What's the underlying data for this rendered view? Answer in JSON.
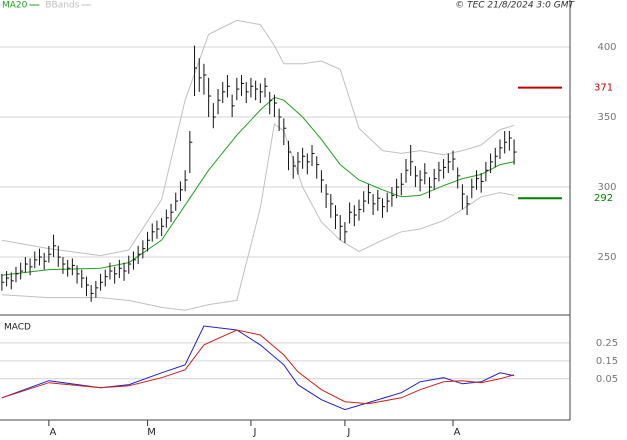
{
  "chart_data": [
    {
      "type": "ohlc",
      "source": "© TEC 21/8/2024 3:0 GMT",
      "xlim": [
        -0.4,
        120.9
      ],
      "ylim": [
        208.6,
        433.6
      ],
      "yticks": [
        250,
        300,
        350,
        400
      ],
      "grid": true,
      "bar_color": "#111111",
      "high": [
        238,
        240,
        239,
        243,
        246,
        250,
        249,
        254,
        256,
        253,
        258,
        266,
        258,
        250,
        248,
        249,
        244,
        241,
        236,
        230,
        233,
        238,
        241,
        246,
        243,
        248,
        246,
        251,
        254,
        258,
        262,
        268,
        274,
        276,
        278,
        284,
        288,
        296,
        304,
        312,
        340,
        401,
        392,
        388,
        378,
        360,
        370,
        375,
        380,
        366,
        378,
        380,
        375,
        378,
        376,
        374,
        378,
        368,
        366,
        356,
        349,
        333,
        322,
        325,
        328,
        324,
        330,
        322,
        312,
        302,
        295,
        287,
        280,
        275,
        289,
        287,
        291,
        297,
        302,
        295,
        298,
        292,
        296,
        300,
        306,
        310,
        320,
        330,
        315,
        312,
        317,
        307,
        313,
        318,
        320,
        324,
        326,
        314,
        302,
        294,
        306,
        312,
        310,
        318,
        324,
        328,
        334,
        340,
        340,
        334
      ],
      "low": [
        226,
        229,
        227,
        232,
        234,
        239,
        237,
        242,
        244,
        241,
        246,
        250,
        243,
        238,
        236,
        237,
        231,
        228,
        222,
        218,
        221,
        226,
        229,
        234,
        231,
        235,
        233,
        238,
        241,
        245,
        249,
        254,
        261,
        263,
        265,
        271,
        275,
        283,
        290,
        297,
        310,
        365,
        368,
        366,
        350,
        342,
        352,
        360,
        364,
        350,
        362,
        365,
        360,
        364,
        362,
        360,
        364,
        352,
        350,
        340,
        330,
        312,
        306,
        309,
        313,
        309,
        315,
        306,
        296,
        285,
        278,
        270,
        262,
        260,
        274,
        272,
        276,
        282,
        288,
        280,
        283,
        278,
        282,
        286,
        292,
        294,
        303,
        308,
        300,
        297,
        302,
        292,
        298,
        304,
        306,
        310,
        312,
        299,
        284,
        280,
        292,
        298,
        296,
        304,
        310,
        314,
        320,
        324,
        326,
        316
      ],
      "close": [
        232,
        235,
        233,
        238,
        240,
        245,
        243,
        248,
        250,
        247,
        252,
        258,
        250,
        245,
        242,
        244,
        238,
        235,
        230,
        224,
        228,
        232,
        236,
        240,
        238,
        242,
        240,
        245,
        248,
        252,
        256,
        262,
        268,
        270,
        272,
        278,
        282,
        290,
        298,
        305,
        332,
        385,
        378,
        380,
        365,
        350,
        362,
        368,
        372,
        358,
        370,
        374,
        368,
        372,
        370,
        368,
        372,
        362,
        360,
        350,
        342,
        325,
        315,
        318,
        322,
        318,
        324,
        316,
        305,
        295,
        288,
        280,
        272,
        268,
        282,
        280,
        284,
        290,
        296,
        288,
        292,
        286,
        290,
        294,
        300,
        302,
        312,
        318,
        308,
        305,
        310,
        300,
        306,
        312,
        314,
        318,
        320,
        308,
        295,
        288,
        300,
        306,
        304,
        312,
        318,
        322,
        328,
        332,
        335,
        325
      ],
      "series": [
        {
          "name": "MA20",
          "color": "#22a022",
          "x": [
            0,
            10,
            21,
            27,
            34,
            39,
            44,
            50,
            55,
            58,
            60,
            64,
            68,
            72,
            76,
            81,
            85,
            89,
            94,
            98,
            102,
            106,
            109
          ],
          "values": [
            237,
            241,
            242,
            246,
            262,
            287,
            312,
            337,
            355,
            364,
            362,
            350,
            334,
            316,
            305,
            298,
            293,
            294,
            301,
            306,
            309,
            316,
            318
          ]
        },
        {
          "name": "BBands",
          "color": "#c0c0c0",
          "x": [
            0,
            10,
            21,
            27,
            34,
            39,
            44,
            50,
            55,
            58,
            60,
            64,
            68,
            72,
            76,
            81,
            85,
            89,
            94,
            98,
            102,
            106,
            109
          ],
          "upper": [
            262,
            256,
            251,
            255,
            291,
            362,
            409,
            419,
            416,
            401,
            388,
            388,
            390,
            384,
            342,
            326,
            324,
            326,
            323,
            326,
            330,
            341,
            344
          ],
          "lower": [
            223,
            221,
            221,
            219,
            214,
            212,
            216,
            219,
            285,
            345,
            340,
            300,
            275,
            262,
            254,
            262,
            268,
            270,
            276,
            284,
            293,
            296,
            294
          ]
        }
      ],
      "levels": [
        {
          "value": 371,
          "color": "#c00000"
        },
        {
          "value": 292,
          "color": "#008000"
        }
      ]
    },
    {
      "type": "line",
      "title": "MACD",
      "xlim": [
        -0.4,
        120.9
      ],
      "ylim": [
        -0.18,
        0.4
      ],
      "yticks": [
        {
          "value": 0.25,
          "label": "0.25"
        },
        {
          "value": 0.15,
          "label": "0.15"
        },
        {
          "value": 0.05,
          "label": "0.05"
        }
      ],
      "xticks": [
        {
          "value": 10,
          "label": "A"
        },
        {
          "value": 31,
          "label": "M"
        },
        {
          "value": 53,
          "label": "J"
        },
        {
          "value": 73,
          "label": "J"
        },
        {
          "value": 96,
          "label": "A"
        }
      ],
      "grid": true,
      "series": [
        {
          "color": "#2020c0",
          "x": [
            0,
            10,
            21,
            27,
            34,
            39,
            43,
            50,
            55,
            60,
            63,
            68,
            73,
            78,
            85,
            89,
            94,
            98,
            102,
            106,
            109
          ],
          "values": [
            -0.056,
            0.039,
            0.0,
            0.017,
            0.083,
            0.128,
            0.344,
            0.322,
            0.239,
            0.128,
            0.017,
            -0.067,
            -0.122,
            -0.083,
            -0.028,
            0.033,
            0.056,
            0.022,
            0.033,
            0.083,
            0.067
          ]
        },
        {
          "color": "#cc2020",
          "x": [
            0,
            10,
            21,
            27,
            34,
            39,
            43,
            50,
            55,
            60,
            63,
            68,
            73,
            78,
            85,
            89,
            94,
            98,
            102,
            106,
            109
          ],
          "values": [
            -0.056,
            0.028,
            0.0,
            0.011,
            0.056,
            0.1,
            0.239,
            0.322,
            0.294,
            0.183,
            0.089,
            -0.011,
            -0.078,
            -0.089,
            -0.056,
            -0.011,
            0.033,
            0.039,
            0.028,
            0.05,
            0.072
          ]
        }
      ]
    }
  ]
}
